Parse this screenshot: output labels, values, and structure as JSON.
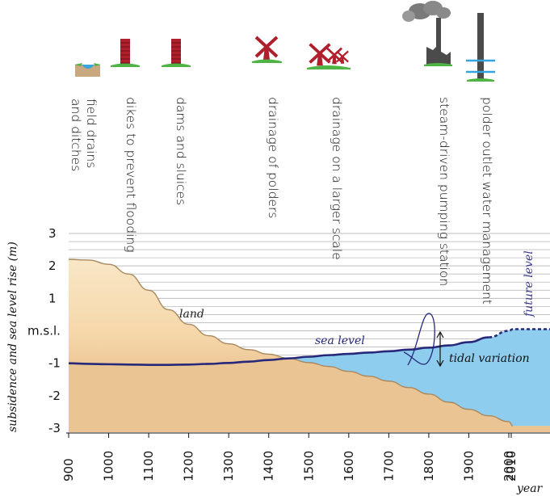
{
  "chart_data": {
    "type": "area",
    "ylabel": "subsidence and sea level rise (m)",
    "xlabel": "year",
    "xlim": [
      900,
      2010
    ],
    "ylim": [
      -3,
      3
    ],
    "x_ticks": [
      900,
      1000,
      1100,
      1200,
      1300,
      1400,
      1500,
      1600,
      1700,
      1800,
      1900,
      2000,
      2010
    ],
    "y_ticks": [
      {
        "value": 3,
        "label": "3"
      },
      {
        "value": 2,
        "label": "2"
      },
      {
        "value": 1,
        "label": "1"
      },
      {
        "value": 0,
        "label": "m.s.l."
      },
      {
        "value": -1,
        "label": "-1"
      },
      {
        "value": -2,
        "label": "-2"
      },
      {
        "value": -3,
        "label": "-3"
      }
    ],
    "grid": true,
    "series": [
      {
        "name": "land",
        "color": "#f5d6a8",
        "x": [
          900,
          950,
          1000,
          1050,
          1100,
          1150,
          1200,
          1250,
          1300,
          1350,
          1400,
          1450,
          1500,
          1550,
          1600,
          1650,
          1700,
          1750,
          1800,
          1850,
          1900,
          1950,
          2000,
          2050,
          2010
        ],
        "y": [
          2.2,
          2.18,
          2.05,
          1.75,
          1.25,
          0.65,
          0.2,
          -0.15,
          -0.4,
          -0.58,
          -0.72,
          -0.85,
          -0.98,
          -1.1,
          -1.25,
          -1.4,
          -1.55,
          -1.75,
          -1.95,
          -2.2,
          -2.42,
          -2.62,
          -2.8,
          -2.95,
          -2.93
        ]
      },
      {
        "name": "sea level",
        "color": "#27287a",
        "x": [
          900,
          950,
          1000,
          1050,
          1100,
          1150,
          1200,
          1250,
          1300,
          1350,
          1400,
          1450,
          1500,
          1550,
          1600,
          1650,
          1700,
          1750,
          1800,
          1850,
          1900,
          1950,
          2000,
          2010
        ],
        "y": [
          -1.0,
          -1.02,
          -1.03,
          -1.04,
          -1.05,
          -1.05,
          -1.04,
          -1.02,
          -0.99,
          -0.95,
          -0.9,
          -0.85,
          -0.8,
          -0.75,
          -0.71,
          -0.67,
          -0.63,
          -0.58,
          -0.52,
          -0.45,
          -0.35,
          -0.2,
          0.0,
          0.05
        ]
      }
    ],
    "annotations": [
      {
        "text": "land",
        "x": 1220,
        "y": 0.35
      },
      {
        "text": "sea level",
        "x": 1570,
        "y": -0.5
      },
      {
        "text": "tidal variation",
        "x": 1830,
        "y": -1.0
      },
      {
        "text": "future level",
        "x": 2000,
        "y": 1.3
      }
    ]
  },
  "milestones": [
    {
      "label": "field drains\nand ditches",
      "icon": "ditch-icon",
      "year": 900
    },
    {
      "label": "dikes to prevent flooding",
      "icon": "dike-icon",
      "year": 1050
    },
    {
      "label": "dams and sluices",
      "icon": "dam-icon",
      "year": 1175
    },
    {
      "label": "drainage of polders",
      "icon": "windmill-icon",
      "year": 1400
    },
    {
      "label": "drainage on a larger scale",
      "icon": "windmills-icon",
      "year": 1560
    },
    {
      "label": "steam-driven pumping station",
      "icon": "steam-pump-icon",
      "year": 1830
    },
    {
      "label": "polder outlet water management",
      "icon": "outlet-icon",
      "year": 1940
    }
  ],
  "colors": {
    "land_light": "#f8e3bd",
    "land_dark": "#eac593",
    "water": "#8ecdee",
    "sea_line": "#27287a",
    "grid": "#bcbcbc",
    "icon_red": "#b01f2c",
    "icon_gray": "#4b4b4b",
    "grass": "#4fb345"
  }
}
